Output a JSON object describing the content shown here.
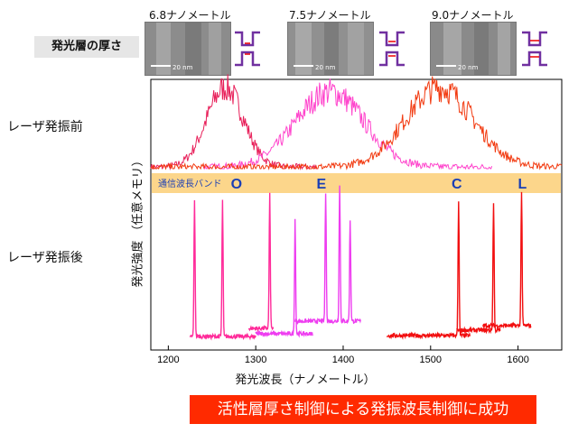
{
  "header": {
    "layer_label": "発光層の厚さ",
    "samples": [
      {
        "label": "6.8ナノメートル",
        "scale": "20 nm"
      },
      {
        "label": "7.5ナノメートル",
        "scale": "20 nm"
      },
      {
        "label": "9.0ナノメートル",
        "scale": "20 nm"
      }
    ]
  },
  "rows": {
    "before": "レーザ発振前",
    "after": "レーザ発振後"
  },
  "banner": "活性層厚さ制御による発振波長制御に成功",
  "colors": {
    "band": "#fcd68b",
    "band_text": "#1a3fb5",
    "series": [
      "#e8205a",
      "#ff44cc",
      "#f23a10"
    ],
    "lasing": [
      "#ff2b9a",
      "#ee3df0",
      "#f20f10"
    ],
    "banner": "#ff2a00"
  },
  "chart_data": {
    "type": "line",
    "xlabel": "発光波長（ナノメートル）",
    "ylabel": "発光強度 （任意メモリ）",
    "xlim": [
      1180,
      1650
    ],
    "xticks": [
      1200,
      1300,
      1400,
      1500,
      1600
    ],
    "grid": false,
    "band": {
      "label": "通信波長バンド",
      "letters": [
        {
          "name": "O",
          "x": 1278
        },
        {
          "name": "E",
          "x": 1375
        },
        {
          "name": "C",
          "x": 1530
        },
        {
          "name": "L",
          "x": 1605
        }
      ]
    },
    "before_lasing": [
      {
        "center": 1265,
        "width": 30,
        "range": [
          1180,
          1370
        ],
        "peak": 1.0
      },
      {
        "center": 1385,
        "width": 55,
        "range": [
          1240,
          1570
        ],
        "peak": 0.95
      },
      {
        "center": 1510,
        "width": 55,
        "range": [
          1180,
          1650
        ],
        "peak": 1.0
      }
    ],
    "after_lasing": [
      {
        "series": 0,
        "range": [
          1225,
          1300
        ],
        "peaks": [
          [
            1230,
            1.0
          ],
          [
            1262,
            1.0
          ]
        ]
      },
      {
        "series": 0,
        "range": [
          1292,
          1320
        ],
        "peaks": [
          [
            1316,
            1.0
          ]
        ]
      },
      {
        "series": 1,
        "range": [
          1300,
          1365
        ],
        "peaks": [
          [
            1345,
            0.85
          ]
        ]
      },
      {
        "series": 1,
        "range": [
          1345,
          1420
        ],
        "peaks": [
          [
            1380,
            0.95
          ],
          [
            1396,
            1.0
          ],
          [
            1408,
            0.75
          ]
        ]
      },
      {
        "series": 2,
        "range": [
          1450,
          1545
        ],
        "peaks": [
          [
            1532,
            1.0
          ]
        ]
      },
      {
        "series": 2,
        "range": [
          1530,
          1580
        ],
        "peaks": [
          [
            1572,
            0.95
          ]
        ]
      },
      {
        "series": 2,
        "range": [
          1560,
          1615
        ],
        "peaks": [
          [
            1604,
            1.0
          ]
        ]
      }
    ]
  }
}
